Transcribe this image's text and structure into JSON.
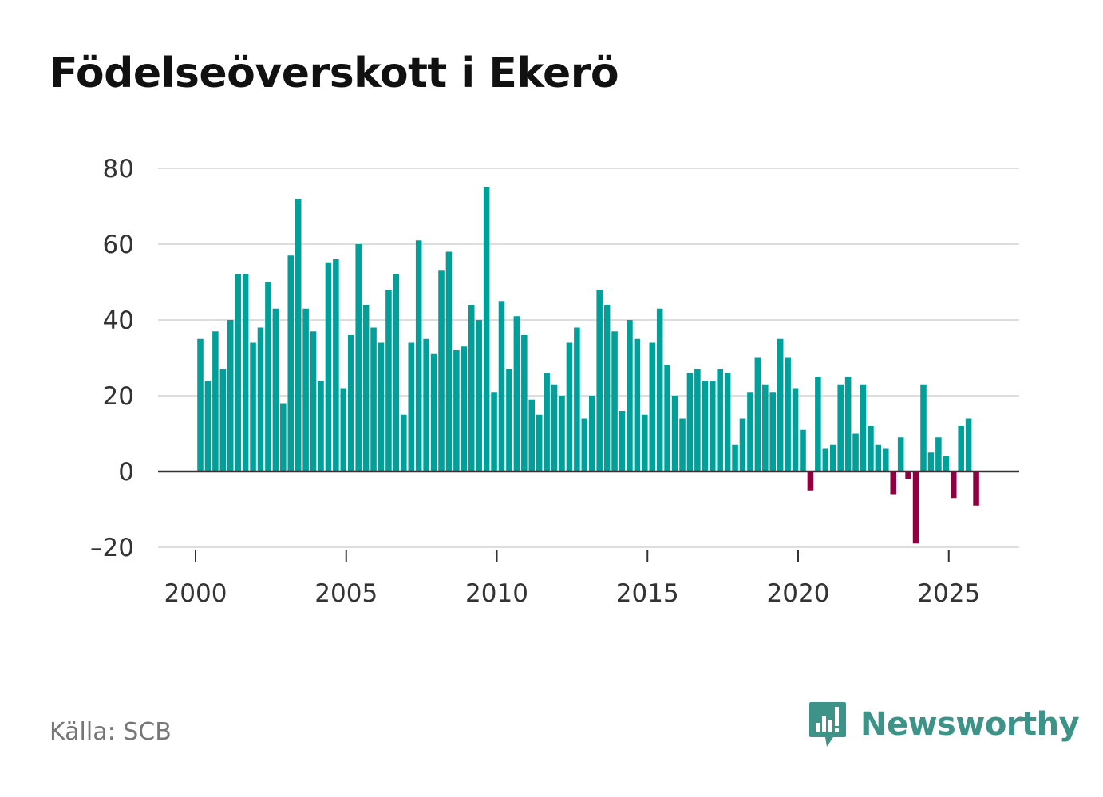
{
  "title": "Födelseöverskott i Ekerö",
  "source": "Källa: SCB",
  "brand": {
    "name": "Newsworthy",
    "icon": "newsworthy-logo-icon"
  },
  "colors": {
    "positive": "#00a09a",
    "negative": "#8f0040",
    "grid": "#dddddd",
    "zero_line": "#333333",
    "brand": "#3e9389"
  },
  "chart_data": {
    "type": "bar",
    "title": "Födelseöverskott i Ekerö",
    "xlabel": "",
    "ylabel": "",
    "x_start": 2000.0,
    "x_step": 0.25,
    "xlim": [
      1999.75,
      2027.25
    ],
    "ylim": [
      -22,
      82
    ],
    "y_ticks": [
      80,
      60,
      40,
      20,
      0,
      -20
    ],
    "y_tick_labels": [
      "80",
      "60",
      "40",
      "20",
      "0",
      "–20"
    ],
    "x_ticks": [
      2000,
      2005,
      2010,
      2015,
      2020,
      2025
    ],
    "x_tick_labels": [
      "2000",
      "2005",
      "2010",
      "2015",
      "2020",
      "2025"
    ],
    "values": [
      35,
      24,
      37,
      27,
      40,
      52,
      52,
      34,
      38,
      50,
      43,
      18,
      57,
      72,
      43,
      37,
      24,
      55,
      56,
      22,
      36,
      60,
      44,
      38,
      34,
      48,
      52,
      15,
      34,
      61,
      35,
      31,
      53,
      58,
      32,
      33,
      44,
      40,
      75,
      21,
      45,
      27,
      41,
      36,
      19,
      15,
      26,
      23,
      20,
      34,
      38,
      14,
      20,
      48,
      44,
      37,
      16,
      40,
      35,
      15,
      34,
      43,
      28,
      20,
      14,
      26,
      27,
      24,
      24,
      27,
      26,
      7,
      14,
      21,
      30,
      23,
      21,
      35,
      30,
      22,
      11,
      -5,
      25,
      6,
      7,
      23,
      25,
      10,
      23,
      12,
      7,
      6,
      -6,
      9,
      -2,
      -19,
      23,
      5,
      9,
      4,
      -7,
      12,
      14,
      -9
    ]
  }
}
